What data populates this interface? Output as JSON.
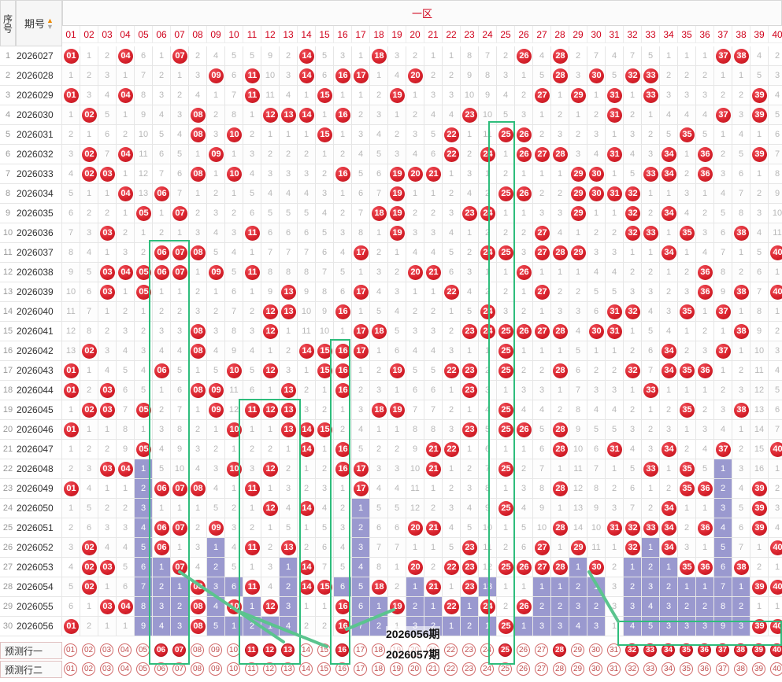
{
  "header": {
    "seq_label": "序号",
    "issue_label": "期号",
    "zone_label": "一区"
  },
  "numbers": [
    "01",
    "02",
    "03",
    "04",
    "05",
    "06",
    "07",
    "08",
    "09",
    "10",
    "11",
    "12",
    "13",
    "14",
    "15",
    "16",
    "17",
    "18",
    "19",
    "20",
    "21",
    "22",
    "23",
    "24",
    "25",
    "26",
    "27",
    "28",
    "29",
    "30",
    "31",
    "32",
    "33",
    "34",
    "35",
    "36",
    "37",
    "38",
    "39",
    "40"
  ],
  "rows": [
    {
      "seq": "1",
      "issue": "2026027",
      "cells": [
        "01",
        "1",
        "2",
        "04",
        "6",
        "1",
        "07",
        "2",
        "4",
        "5",
        "5",
        "9",
        "2",
        "14",
        "5",
        "3",
        "1",
        "18",
        "3",
        "2",
        "1",
        "1",
        "8",
        "7",
        "2",
        "26",
        "4",
        "28",
        "2",
        "7",
        "4",
        "7",
        "5",
        "1",
        "1",
        "1",
        "37",
        "38",
        "4",
        "2"
      ]
    },
    {
      "seq": "2",
      "issue": "2026028",
      "cells": [
        "1",
        "2",
        "3",
        "1",
        "7",
        "2",
        "1",
        "3",
        "09",
        "6",
        "11",
        "10",
        "3",
        "14",
        "6",
        "16",
        "17",
        "1",
        "4",
        "20",
        "2",
        "2",
        "9",
        "8",
        "3",
        "1",
        "5",
        "28",
        "3",
        "30",
        "5",
        "32",
        "33",
        "2",
        "2",
        "2",
        "1",
        "1",
        "5",
        "3"
      ]
    },
    {
      "seq": "3",
      "issue": "2026029",
      "cells": [
        "01",
        "3",
        "4",
        "04",
        "8",
        "3",
        "2",
        "4",
        "1",
        "7",
        "11",
        "11",
        "4",
        "1",
        "15",
        "1",
        "1",
        "2",
        "19",
        "1",
        "3",
        "3",
        "10",
        "9",
        "4",
        "2",
        "27",
        "1",
        "29",
        "1",
        "31",
        "1",
        "33",
        "3",
        "3",
        "3",
        "2",
        "2",
        "39",
        "4"
      ]
    },
    {
      "seq": "4",
      "issue": "2026030",
      "cells": [
        "1",
        "02",
        "5",
        "1",
        "9",
        "4",
        "3",
        "08",
        "2",
        "8",
        "1",
        "12",
        "13",
        "14",
        "1",
        "16",
        "2",
        "3",
        "1",
        "2",
        "4",
        "4",
        "23",
        "10",
        "5",
        "3",
        "1",
        "2",
        "1",
        "2",
        "31",
        "2",
        "1",
        "4",
        "4",
        "4",
        "37",
        "3",
        "39",
        "5"
      ]
    },
    {
      "seq": "5",
      "issue": "2026031",
      "cells": [
        "2",
        "1",
        "6",
        "2",
        "10",
        "5",
        "4",
        "08",
        "3",
        "10",
        "2",
        "1",
        "1",
        "1",
        "15",
        "1",
        "3",
        "4",
        "2",
        "3",
        "5",
        "22",
        "1",
        "11",
        "25",
        "26",
        "2",
        "3",
        "2",
        "3",
        "1",
        "3",
        "2",
        "5",
        "35",
        "5",
        "1",
        "4",
        "1",
        "6"
      ]
    },
    {
      "seq": "6",
      "issue": "2026032",
      "cells": [
        "3",
        "02",
        "7",
        "04",
        "11",
        "6",
        "5",
        "1",
        "09",
        "1",
        "3",
        "2",
        "2",
        "2",
        "1",
        "2",
        "4",
        "5",
        "3",
        "4",
        "6",
        "22",
        "2",
        "24",
        "1",
        "26",
        "27",
        "28",
        "3",
        "4",
        "31",
        "4",
        "3",
        "34",
        "1",
        "36",
        "2",
        "5",
        "39",
        "7"
      ]
    },
    {
      "seq": "7",
      "issue": "2026033",
      "cells": [
        "4",
        "02",
        "03",
        "1",
        "12",
        "7",
        "6",
        "08",
        "1",
        "10",
        "4",
        "3",
        "3",
        "3",
        "2",
        "16",
        "5",
        "6",
        "19",
        "20",
        "21",
        "1",
        "3",
        "1",
        "2",
        "1",
        "1",
        "1",
        "29",
        "30",
        "1",
        "5",
        "33",
        "34",
        "2",
        "36",
        "3",
        "6",
        "1",
        "8"
      ]
    },
    {
      "seq": "8",
      "issue": "2026034",
      "cells": [
        "5",
        "1",
        "1",
        "04",
        "13",
        "06",
        "7",
        "1",
        "2",
        "1",
        "5",
        "4",
        "4",
        "4",
        "3",
        "1",
        "6",
        "7",
        "19",
        "1",
        "1",
        "2",
        "4",
        "2",
        "25",
        "26",
        "2",
        "2",
        "29",
        "30",
        "31",
        "32",
        "1",
        "1",
        "3",
        "1",
        "4",
        "7",
        "2",
        "9"
      ]
    },
    {
      "seq": "9",
      "issue": "2026035",
      "cells": [
        "6",
        "2",
        "2",
        "1",
        "05",
        "1",
        "07",
        "2",
        "3",
        "2",
        "6",
        "5",
        "5",
        "5",
        "4",
        "2",
        "7",
        "18",
        "19",
        "2",
        "2",
        "3",
        "23",
        "24",
        "1",
        "1",
        "3",
        "3",
        "29",
        "1",
        "1",
        "32",
        "2",
        "34",
        "4",
        "2",
        "5",
        "8",
        "3",
        "10"
      ]
    },
    {
      "seq": "10",
      "issue": "2026036",
      "cells": [
        "7",
        "3",
        "03",
        "2",
        "1",
        "2",
        "1",
        "3",
        "4",
        "3",
        "11",
        "6",
        "6",
        "6",
        "5",
        "3",
        "8",
        "1",
        "19",
        "3",
        "3",
        "4",
        "1",
        "2",
        "2",
        "2",
        "27",
        "4",
        "1",
        "2",
        "2",
        "32",
        "33",
        "1",
        "35",
        "3",
        "6",
        "38",
        "4",
        "11"
      ]
    },
    {
      "seq": "11",
      "issue": "2026037",
      "cells": [
        "8",
        "4",
        "1",
        "3",
        "2",
        "06",
        "07",
        "08",
        "5",
        "4",
        "1",
        "7",
        "7",
        "7",
        "6",
        "4",
        "17",
        "2",
        "1",
        "4",
        "4",
        "5",
        "2",
        "24",
        "25",
        "3",
        "27",
        "28",
        "29",
        "3",
        "3",
        "1",
        "1",
        "34",
        "1",
        "4",
        "7",
        "1",
        "5",
        "40"
      ]
    },
    {
      "seq": "12",
      "issue": "2026038",
      "cells": [
        "9",
        "5",
        "03",
        "04",
        "05",
        "06",
        "07",
        "1",
        "09",
        "5",
        "11",
        "8",
        "8",
        "8",
        "7",
        "5",
        "1",
        "3",
        "2",
        "20",
        "21",
        "6",
        "3",
        "1",
        "1",
        "26",
        "1",
        "1",
        "1",
        "4",
        "4",
        "2",
        "2",
        "1",
        "2",
        "36",
        "8",
        "2",
        "6",
        "1"
      ]
    },
    {
      "seq": "13",
      "issue": "2026039",
      "cells": [
        "10",
        "6",
        "03",
        "1",
        "05",
        "1",
        "1",
        "2",
        "1",
        "6",
        "1",
        "9",
        "13",
        "9",
        "8",
        "6",
        "17",
        "4",
        "3",
        "1",
        "1",
        "22",
        "4",
        "2",
        "2",
        "1",
        "27",
        "2",
        "2",
        "5",
        "5",
        "3",
        "3",
        "2",
        "3",
        "36",
        "9",
        "38",
        "7",
        "40"
      ]
    },
    {
      "seq": "14",
      "issue": "2026040",
      "cells": [
        "11",
        "7",
        "1",
        "2",
        "1",
        "2",
        "2",
        "3",
        "2",
        "7",
        "2",
        "12",
        "13",
        "10",
        "9",
        "16",
        "1",
        "5",
        "4",
        "2",
        "2",
        "1",
        "5",
        "24",
        "3",
        "2",
        "1",
        "3",
        "3",
        "6",
        "31",
        "32",
        "4",
        "3",
        "35",
        "1",
        "37",
        "1",
        "8",
        "1"
      ]
    },
    {
      "seq": "15",
      "issue": "2026041",
      "cells": [
        "12",
        "8",
        "2",
        "3",
        "2",
        "3",
        "3",
        "08",
        "3",
        "8",
        "3",
        "12",
        "1",
        "11",
        "10",
        "1",
        "17",
        "18",
        "5",
        "3",
        "3",
        "2",
        "23",
        "24",
        "25",
        "26",
        "27",
        "28",
        "4",
        "30",
        "31",
        "1",
        "5",
        "4",
        "1",
        "2",
        "1",
        "38",
        "9",
        "2"
      ]
    },
    {
      "seq": "16",
      "issue": "2026042",
      "cells": [
        "13",
        "02",
        "3",
        "4",
        "3",
        "4",
        "4",
        "08",
        "4",
        "9",
        "4",
        "1",
        "2",
        "14",
        "15",
        "16",
        "17",
        "1",
        "6",
        "4",
        "4",
        "3",
        "1",
        "1",
        "25",
        "1",
        "1",
        "1",
        "5",
        "1",
        "1",
        "2",
        "6",
        "34",
        "2",
        "3",
        "37",
        "1",
        "10",
        "3"
      ]
    },
    {
      "seq": "17",
      "issue": "2026043",
      "cells": [
        "01",
        "1",
        "4",
        "5",
        "4",
        "06",
        "5",
        "1",
        "5",
        "10",
        "5",
        "12",
        "3",
        "1",
        "15",
        "16",
        "1",
        "2",
        "19",
        "5",
        "5",
        "22",
        "23",
        "2",
        "25",
        "2",
        "2",
        "28",
        "6",
        "2",
        "2",
        "32",
        "7",
        "34",
        "35",
        "36",
        "1",
        "2",
        "11",
        "4"
      ]
    },
    {
      "seq": "18",
      "issue": "2026044",
      "cells": [
        "01",
        "2",
        "03",
        "6",
        "5",
        "1",
        "6",
        "08",
        "09",
        "11",
        "6",
        "1",
        "13",
        "2",
        "1",
        "16",
        "2",
        "3",
        "1",
        "6",
        "6",
        "1",
        "23",
        "3",
        "1",
        "3",
        "3",
        "1",
        "7",
        "3",
        "3",
        "1",
        "33",
        "1",
        "1",
        "1",
        "2",
        "3",
        "12",
        "5"
      ]
    },
    {
      "seq": "19",
      "issue": "2026045",
      "cells": [
        "1",
        "02",
        "03",
        "7",
        "05",
        "2",
        "7",
        "1",
        "09",
        "12",
        "11",
        "12",
        "13",
        "3",
        "2",
        "1",
        "3",
        "18",
        "19",
        "7",
        "7",
        "2",
        "1",
        "4",
        "25",
        "4",
        "4",
        "2",
        "8",
        "4",
        "4",
        "2",
        "1",
        "2",
        "35",
        "2",
        "3",
        "38",
        "13",
        "6"
      ]
    },
    {
      "seq": "20",
      "issue": "2026046",
      "cells": [
        "01",
        "1",
        "1",
        "8",
        "1",
        "3",
        "8",
        "2",
        "1",
        "10",
        "1",
        "1",
        "13",
        "14",
        "15",
        "2",
        "4",
        "1",
        "1",
        "8",
        "8",
        "3",
        "23",
        "5",
        "25",
        "26",
        "5",
        "28",
        "9",
        "5",
        "5",
        "3",
        "2",
        "3",
        "1",
        "3",
        "4",
        "1",
        "14",
        "7"
      ]
    },
    {
      "seq": "21",
      "issue": "2026047",
      "cells": [
        "1",
        "2",
        "2",
        "9",
        "05",
        "4",
        "9",
        "3",
        "2",
        "1",
        "2",
        "2",
        "1",
        "14",
        "1",
        "16",
        "5",
        "2",
        "2",
        "9",
        "21",
        "22",
        "1",
        "6",
        "1",
        "1",
        "6",
        "28",
        "10",
        "6",
        "31",
        "4",
        "3",
        "34",
        "2",
        "4",
        "37",
        "2",
        "15",
        "40"
      ]
    },
    {
      "seq": "22",
      "issue": "2026048",
      "cells": [
        "2",
        "3",
        "03",
        "04",
        "1",
        "5",
        "10",
        "4",
        "3",
        "10",
        "3",
        "12",
        "2",
        "1",
        "2",
        "16",
        "17",
        "3",
        "3",
        "10",
        "21",
        "1",
        "2",
        "7",
        "25",
        "2",
        "7",
        "1",
        "11",
        "7",
        "1",
        "5",
        "33",
        "1",
        "35",
        "5",
        "1",
        "3",
        "16",
        "1"
      ]
    },
    {
      "seq": "23",
      "issue": "2026049",
      "cells": [
        "01",
        "4",
        "1",
        "1",
        "2",
        "06",
        "07",
        "08",
        "4",
        "1",
        "11",
        "1",
        "3",
        "2",
        "3",
        "1",
        "17",
        "4",
        "4",
        "11",
        "1",
        "2",
        "3",
        "8",
        "1",
        "3",
        "8",
        "28",
        "12",
        "8",
        "2",
        "6",
        "1",
        "2",
        "35",
        "36",
        "2",
        "4",
        "39",
        "2"
      ]
    },
    {
      "seq": "24",
      "issue": "2026050",
      "cells": [
        "1",
        "5",
        "2",
        "2",
        "3",
        "1",
        "1",
        "1",
        "5",
        "2",
        "1",
        "12",
        "4",
        "14",
        "4",
        "2",
        "1",
        "5",
        "5",
        "12",
        "2",
        "3",
        "4",
        "9",
        "25",
        "4",
        "9",
        "1",
        "13",
        "9",
        "3",
        "7",
        "2",
        "34",
        "1",
        "1",
        "3",
        "5",
        "39",
        "3"
      ]
    },
    {
      "seq": "25",
      "issue": "2026051",
      "cells": [
        "2",
        "6",
        "3",
        "3",
        "4",
        "06",
        "07",
        "2",
        "09",
        "3",
        "2",
        "1",
        "5",
        "1",
        "5",
        "3",
        "2",
        "6",
        "6",
        "20",
        "21",
        "4",
        "5",
        "10",
        "1",
        "5",
        "10",
        "28",
        "14",
        "10",
        "31",
        "32",
        "33",
        "34",
        "2",
        "36",
        "4",
        "6",
        "39",
        "4"
      ]
    },
    {
      "seq": "26",
      "issue": "2026052",
      "cells": [
        "3",
        "02",
        "4",
        "4",
        "5",
        "06",
        "1",
        "3",
        "1",
        "4",
        "11",
        "2",
        "13",
        "2",
        "6",
        "4",
        "3",
        "7",
        "7",
        "1",
        "1",
        "5",
        "23",
        "11",
        "2",
        "6",
        "27",
        "1",
        "29",
        "11",
        "1",
        "32",
        "1",
        "34",
        "3",
        "1",
        "5",
        "7",
        "1",
        "40"
      ]
    },
    {
      "seq": "27",
      "issue": "2026053",
      "cells": [
        "4",
        "02",
        "03",
        "5",
        "6",
        "1",
        "07",
        "4",
        "2",
        "5",
        "1",
        "3",
        "1",
        "14",
        "7",
        "5",
        "4",
        "8",
        "1",
        "20",
        "2",
        "22",
        "23",
        "12",
        "25",
        "26",
        "27",
        "28",
        "1",
        "30",
        "2",
        "1",
        "2",
        "1",
        "35",
        "36",
        "6",
        "38",
        "2",
        "1"
      ]
    },
    {
      "seq": "28",
      "issue": "2026054",
      "cells": [
        "5",
        "02",
        "1",
        "6",
        "7",
        "2",
        "1",
        "08",
        "3",
        "6",
        "11",
        "4",
        "2",
        "14",
        "15",
        "6",
        "5",
        "18",
        "2",
        "1",
        "21",
        "1",
        "23",
        "13",
        "1",
        "1",
        "1",
        "1",
        "2",
        "1",
        "3",
        "2",
        "3",
        "2",
        "1",
        "1",
        "7",
        "1",
        "39",
        "40"
      ]
    },
    {
      "seq": "29",
      "issue": "2026055",
      "cells": [
        "6",
        "1",
        "03",
        "04",
        "8",
        "3",
        "2",
        "08",
        "4",
        "10",
        "1",
        "12",
        "3",
        "1",
        "1",
        "16",
        "6",
        "1",
        "19",
        "2",
        "1",
        "22",
        "1",
        "24",
        "2",
        "26",
        "2",
        "2",
        "3",
        "2",
        "3",
        "3",
        "4",
        "3",
        "2",
        "2",
        "8",
        "2",
        "1",
        "1"
      ]
    },
    {
      "seq": "30",
      "issue": "2026056",
      "cells": [
        "01",
        "2",
        "1",
        "1",
        "9",
        "4",
        "3",
        "08",
        "5",
        "1",
        "2",
        "1",
        "4",
        "2",
        "2",
        "16",
        "7",
        "2",
        "1",
        "3",
        "2",
        "1",
        "2",
        "1",
        "25",
        "1",
        "3",
        "3",
        "4",
        "3",
        "1",
        "4",
        "5",
        "3",
        "3",
        "3",
        "9",
        "3",
        "39",
        "40"
      ]
    }
  ],
  "predict": [
    {
      "label": "预测行一",
      "hits": [
        "06",
        "07",
        "11",
        "12",
        "13",
        "16",
        "25",
        "28",
        "32",
        "33",
        "34",
        "35",
        "36",
        "37",
        "38",
        "39",
        "40"
      ]
    },
    {
      "label": "预测行二",
      "hits": []
    }
  ],
  "annotations": {
    "line1": "2026056期",
    "line2": "2026057期"
  },
  "colors": {
    "ball_red": "#d9232d",
    "block_purple": "#9a99cf",
    "box_green": "#2ebd7c",
    "arrow_green": "#5bc48e"
  }
}
